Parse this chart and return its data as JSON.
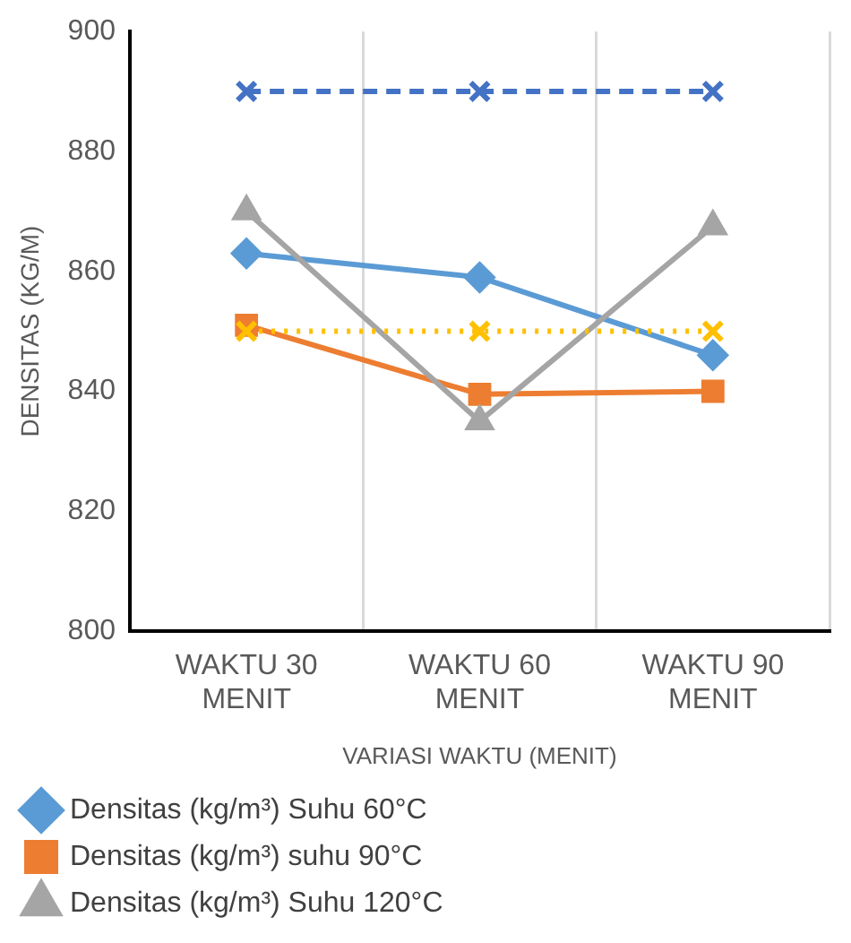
{
  "chart_data": {
    "type": "line",
    "xlabel": "VARIASI WAKTU (MENIT)",
    "ylabel": "DENSITAS (KG/M)",
    "categories": [
      "WAKTU 30 MENIT",
      "WAKTU 60 MENIT",
      "WAKTU 90 MENIT"
    ],
    "series": [
      {
        "name": "Densitas (kg/m³) Suhu 60°C",
        "color": "#5b9bd5",
        "marker": "diamond",
        "values": [
          863,
          859,
          846
        ]
      },
      {
        "name": "Densitas (kg/m³) suhu 90°C",
        "color": "#ed7d31",
        "marker": "square",
        "values": [
          851,
          839.5,
          840
        ]
      },
      {
        "name": "Densitas (kg/m³) Suhu 120°C",
        "color": "#a5a5a5",
        "marker": "triangle",
        "values": [
          870,
          835,
          867.5
        ]
      },
      {
        "color": "#4472c4",
        "marker": "cross",
        "line_style": "dashed",
        "values": [
          890,
          890,
          890
        ]
      },
      {
        "color": "#ffc000",
        "marker": "cross",
        "line_style": "dotted",
        "values": [
          850,
          850,
          850
        ]
      }
    ],
    "ylim": [
      800,
      900
    ],
    "yticks": [
      800,
      820,
      840,
      860,
      880,
      900
    ],
    "grid": "x",
    "legend": "bottom"
  }
}
